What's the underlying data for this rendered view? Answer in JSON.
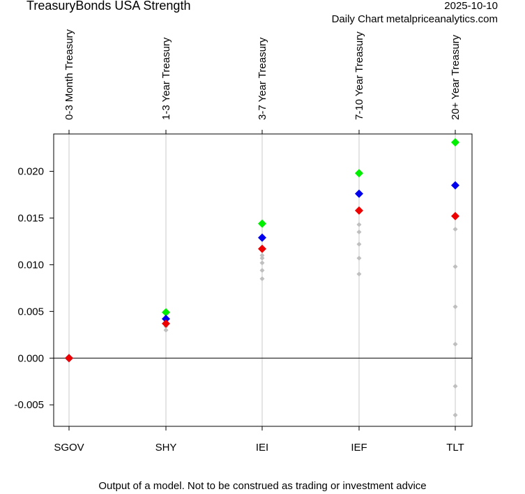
{
  "header": {
    "title": "TreasuryBonds USA Strength",
    "date": "2025-10-10",
    "source": "Daily Chart metalpriceanalytics.com"
  },
  "footer": {
    "disclaimer": "Output of a model. Not to be construed as trading or investment advice"
  },
  "colors": {
    "green": "#00ee00",
    "blue": "#0000ee",
    "red": "#ee0000",
    "history": "#bfbfbf",
    "gridline": "#c8c8c8"
  },
  "chart_data": {
    "type": "scatter",
    "title": "TreasuryBonds USA Strength",
    "ylim": [
      -0.0073,
      0.024
    ],
    "y_ticks": [
      "-0.005",
      "0.000",
      "0.005",
      "0.010",
      "0.015",
      "0.020"
    ],
    "y_tick_values": [
      -0.005,
      0.0,
      0.005,
      0.01,
      0.015,
      0.02
    ],
    "zero_line": true,
    "vertical_grid": true,
    "categories": [
      "SGOV",
      "SHY",
      "IEI",
      "IEF",
      "TLT"
    ],
    "top_labels": [
      "0-3 Month Treasury",
      "1-3 Year Treasury",
      "3-7 Year Treasury",
      "7-10 Year Treasury",
      "20+ Year Treasury"
    ],
    "series": [
      {
        "color": "green",
        "values": [
          0.0,
          0.0049,
          0.0144,
          0.0198,
          0.0231
        ]
      },
      {
        "color": "blue",
        "values": [
          0.0,
          0.0042,
          0.0129,
          0.0176,
          0.0185
        ]
      },
      {
        "color": "red",
        "values": [
          0.0,
          0.0037,
          0.0117,
          0.0158,
          0.0152
        ]
      }
    ],
    "history": [
      [
        0.0,
        0.0,
        0.0
      ],
      [
        0.0038,
        0.0036,
        0.0034,
        0.003
      ],
      [
        0.011,
        0.0107,
        0.0102,
        0.0094,
        0.0085
      ],
      [
        0.0143,
        0.0135,
        0.0122,
        0.0107,
        0.009
      ],
      [
        0.0138,
        0.0098,
        0.0055,
        0.0015,
        -0.003,
        -0.0061
      ]
    ]
  }
}
